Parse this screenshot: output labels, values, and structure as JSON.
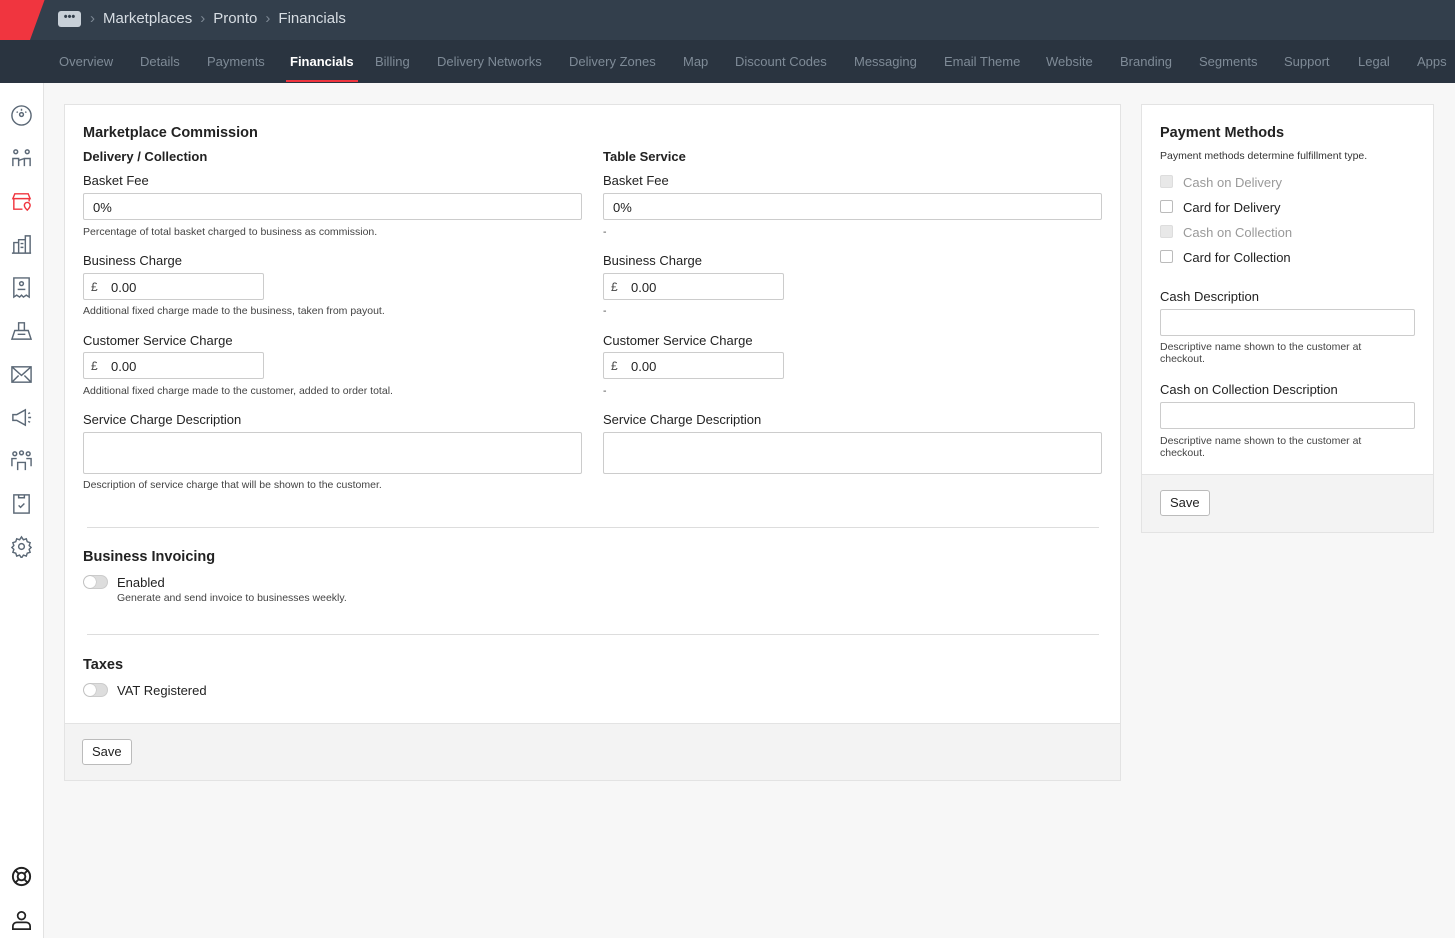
{
  "breadcrumbs": [
    "Marketplaces",
    "Pronto",
    "Financials"
  ],
  "tabs": [
    "Overview",
    "Details",
    "Payments",
    "Financials",
    "Billing",
    "Delivery Networks",
    "Delivery Zones",
    "Map",
    "Discount Codes",
    "Messaging",
    "Email Theme",
    "Website",
    "Branding",
    "Segments",
    "Support",
    "Legal",
    "Apps"
  ],
  "active_tab": "Financials",
  "accent_color": "#f0353f",
  "commission": {
    "title": "Marketplace Commission",
    "delivery": {
      "heading": "Delivery / Collection",
      "basket_fee_label": "Basket Fee",
      "basket_fee": "0%",
      "basket_fee_help": "Percentage of total basket charged to business as commission.",
      "business_charge_label": "Business Charge",
      "currency": "£",
      "business_charge": "0.00",
      "business_charge_help": "Additional fixed charge made to the business, taken from payout.",
      "customer_charge_label": "Customer Service Charge",
      "customer_charge": "0.00",
      "customer_charge_help": "Additional fixed charge made to the customer, added to order total.",
      "desc_label": "Service Charge Description",
      "desc_value": "",
      "desc_help": "Description of service charge that will be shown to the customer."
    },
    "table": {
      "heading": "Table Service",
      "basket_fee_label": "Basket Fee",
      "basket_fee": "0%",
      "basket_fee_help": "-",
      "business_charge_label": "Business Charge",
      "currency": "£",
      "business_charge": "0.00",
      "business_charge_help": "-",
      "customer_charge_label": "Customer Service Charge",
      "customer_charge": "0.00",
      "customer_charge_help": "-",
      "desc_label": "Service Charge Description",
      "desc_value": ""
    }
  },
  "invoicing": {
    "title": "Business Invoicing",
    "toggle_label": "Enabled",
    "toggle_on": false,
    "help": "Generate and send invoice to businesses weekly."
  },
  "taxes": {
    "title": "Taxes",
    "toggle_label": "VAT Registered",
    "toggle_on": false
  },
  "save_label": "Save",
  "payment_methods": {
    "title": "Payment Methods",
    "subtitle": "Payment methods determine fulfillment type.",
    "options": [
      {
        "label": "Cash on Delivery",
        "disabled": true
      },
      {
        "label": "Card for Delivery",
        "disabled": false
      },
      {
        "label": "Cash on Collection",
        "disabled": true
      },
      {
        "label": "Card for Collection",
        "disabled": false
      }
    ],
    "cash_desc_label": "Cash Description",
    "cash_desc_help": "Descriptive name shown to the customer at checkout.",
    "coll_desc_label": "Cash on Collection Description",
    "coll_desc_help": "Descriptive name shown to the customer at checkout.",
    "save_label": "Save"
  },
  "sidebar_icons": [
    "dashboard-icon",
    "users-icon",
    "store-icon",
    "buildings-icon",
    "receipt-icon",
    "cash-register-icon",
    "mail-icon",
    "megaphone-icon",
    "team-icon",
    "clipboard-check-icon",
    "gear-icon",
    "help-lifebuoy-icon",
    "user-icon"
  ]
}
